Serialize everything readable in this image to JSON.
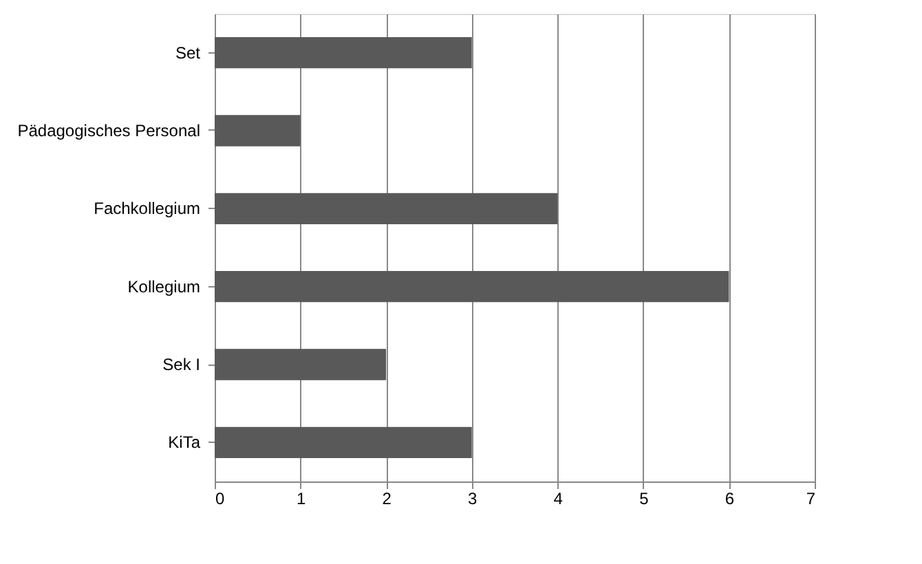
{
  "chart_data": {
    "type": "bar",
    "orientation": "horizontal",
    "categories": [
      "Set",
      "Pädagogisches Personal",
      "Fachkollegium",
      "Kollegium",
      "Sek I",
      "KiTa"
    ],
    "values": [
      3,
      1,
      4,
      6,
      2,
      3
    ],
    "color": "#595959",
    "xlim": [
      0,
      7
    ],
    "xticks": [
      0,
      1,
      2,
      3,
      4,
      5,
      6,
      7
    ],
    "grid": "x"
  }
}
